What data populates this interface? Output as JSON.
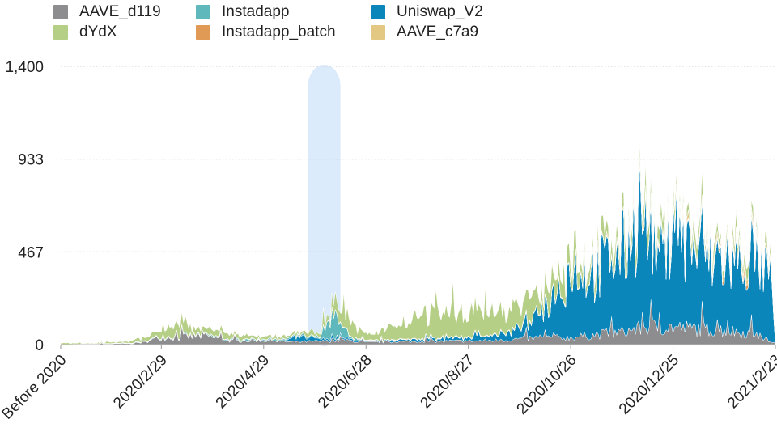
{
  "chart_data": {
    "type": "area",
    "stacked": true,
    "title": "",
    "xlabel": "",
    "ylabel": "",
    "ylim": [
      0,
      1400
    ],
    "y_ticks": [
      "0",
      "467",
      "933",
      "1,400"
    ],
    "y_tick_values": [
      0,
      467,
      933,
      1400
    ],
    "x_tick_labels": [
      "Before 2020",
      "2020/2/29",
      "2020/4/29",
      "2020/6/28",
      "2020/8/27",
      "2020/10/26",
      "2020/12/25",
      "2021/2/23"
    ],
    "grid": "horizontal dotted",
    "legend_position": "top",
    "highlight_band": {
      "from": "2020/5/25",
      "to": "2020/6/13",
      "color": "#dcebfb"
    },
    "series": [
      {
        "name": "AAVE_d119",
        "color": "#8d8d8f",
        "points": [
          [
            "Before 2020",
            0
          ],
          [
            "2020/1/15",
            2
          ],
          [
            "2020/2/10",
            6
          ],
          [
            "2020/2/20",
            14
          ],
          [
            "2020/2/29",
            45
          ],
          [
            "2020/3/10",
            40
          ],
          [
            "2020/3/25",
            50
          ],
          [
            "2020/4/10",
            20
          ],
          [
            "2020/4/29",
            25
          ],
          [
            "2020/5/15",
            15
          ],
          [
            "2020/6/1",
            18
          ],
          [
            "2020/6/15",
            25
          ],
          [
            "2020/6/28",
            12
          ],
          [
            "2020/7/15",
            15
          ],
          [
            "2020/8/1",
            18
          ],
          [
            "2020/8/27",
            20
          ],
          [
            "2020/9/15",
            25
          ],
          [
            "2020/10/1",
            35
          ],
          [
            "2020/10/26",
            40
          ],
          [
            "2020/11/10",
            55
          ],
          [
            "2020/11/25",
            70
          ],
          [
            "2020/12/10",
            100
          ],
          [
            "2020/12/25",
            95
          ],
          [
            "2021/1/10",
            90
          ],
          [
            "2021/1/25",
            80
          ],
          [
            "2021/2/10",
            60
          ],
          [
            "2021/2/20",
            20
          ],
          [
            "2021/2/23",
            5
          ]
        ]
      },
      {
        "name": "Uniswap_V2",
        "color": "#0b86bb",
        "points": [
          [
            "Before 2020",
            0
          ],
          [
            "2020/5/10",
            2
          ],
          [
            "2020/5/20",
            25
          ],
          [
            "2020/6/1",
            15
          ],
          [
            "2020/6/28",
            5
          ],
          [
            "2020/7/20",
            10
          ],
          [
            "2020/8/27",
            18
          ],
          [
            "2020/9/15",
            35
          ],
          [
            "2020/10/1",
            70
          ],
          [
            "2020/10/15",
            200
          ],
          [
            "2020/10/26",
            400
          ],
          [
            "2020/11/10",
            360
          ],
          [
            "2020/11/25",
            440
          ],
          [
            "2020/12/5",
            650
          ],
          [
            "2020/12/15",
            400
          ],
          [
            "2020/12/25",
            520
          ],
          [
            "2021/1/10",
            430
          ],
          [
            "2021/1/25",
            380
          ],
          [
            "2021/2/10",
            420
          ],
          [
            "2021/2/20",
            350
          ],
          [
            "2021/2/23",
            5
          ]
        ]
      },
      {
        "name": "Instadapp",
        "color": "#5fb8bb",
        "points": [
          [
            "Before 2020",
            0
          ],
          [
            "2020/6/1",
            8
          ],
          [
            "2020/6/8",
            150
          ],
          [
            "2020/6/13",
            70
          ],
          [
            "2020/6/20",
            8
          ],
          [
            "2020/7/1",
            0
          ],
          [
            "2021/2/23",
            0
          ]
        ]
      },
      {
        "name": "Instadapp_batch",
        "color": "#e19a55",
        "points": [
          [
            "Before 2020",
            0
          ],
          [
            "2020/12/1",
            2
          ],
          [
            "2021/1/10",
            12
          ],
          [
            "2021/2/10",
            22
          ],
          [
            "2021/2/23",
            2
          ]
        ]
      },
      {
        "name": "AAVE_c7a9",
        "color": "#e3c884",
        "points": [
          [
            "Before 2020",
            0
          ],
          [
            "2020/11/1",
            3
          ],
          [
            "2020/12/1",
            15
          ],
          [
            "2020/12/25",
            20
          ],
          [
            "2021/1/25",
            25
          ],
          [
            "2021/2/10",
            22
          ],
          [
            "2021/2/23",
            3
          ]
        ]
      },
      {
        "name": "dYdX",
        "color": "#b6cf86",
        "points": [
          [
            "Before 2020",
            8
          ],
          [
            "2020/1/15",
            3
          ],
          [
            "2020/2/10",
            8
          ],
          [
            "2020/2/29",
            40
          ],
          [
            "2020/3/10",
            55
          ],
          [
            "2020/3/25",
            35
          ],
          [
            "2020/4/10",
            25
          ],
          [
            "2020/4/29",
            15
          ],
          [
            "2020/5/15",
            10
          ],
          [
            "2020/6/1",
            25
          ],
          [
            "2020/6/15",
            90
          ],
          [
            "2020/6/28",
            30
          ],
          [
            "2020/7/15",
            80
          ],
          [
            "2020/8/1",
            120
          ],
          [
            "2020/8/27",
            140
          ],
          [
            "2020/9/15",
            130
          ],
          [
            "2020/10/1",
            110
          ],
          [
            "2020/10/26",
            90
          ],
          [
            "2020/11/10",
            80
          ],
          [
            "2020/11/25",
            75
          ],
          [
            "2020/12/10",
            90
          ],
          [
            "2020/12/25",
            60
          ],
          [
            "2021/1/10",
            55
          ],
          [
            "2021/1/25",
            50
          ],
          [
            "2021/2/10",
            55
          ],
          [
            "2021/2/20",
            45
          ],
          [
            "2021/2/23",
            5
          ]
        ]
      }
    ]
  }
}
